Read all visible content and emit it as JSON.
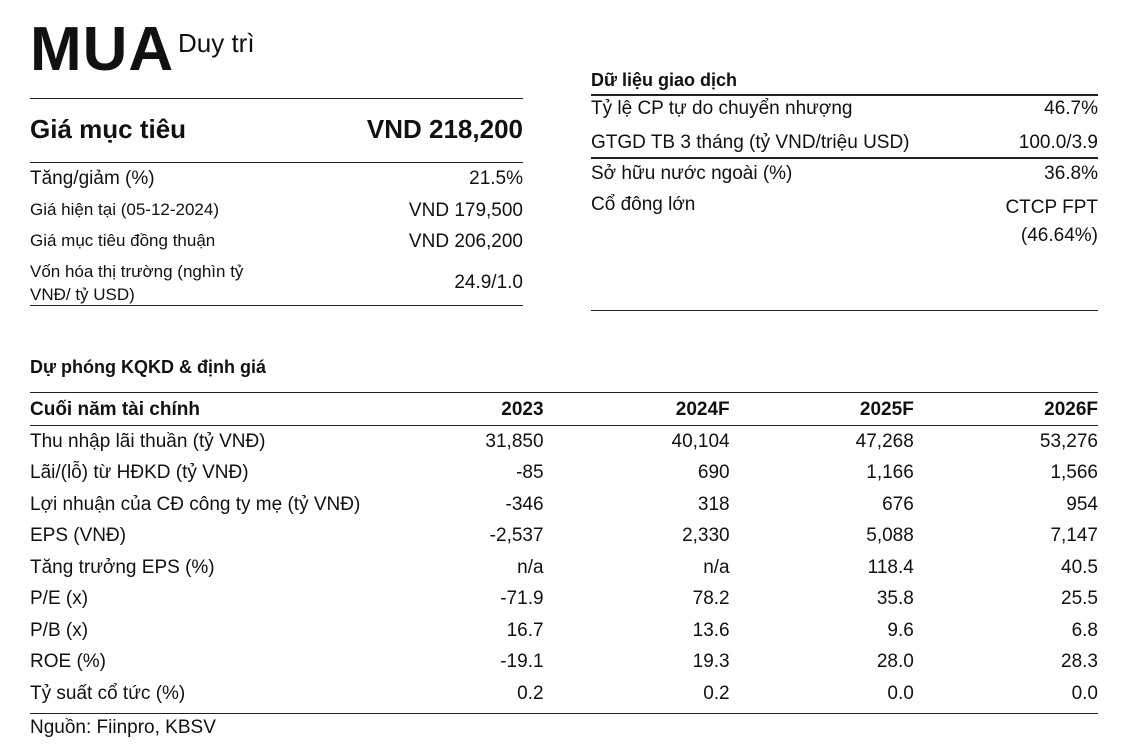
{
  "rating": "MUA",
  "rating_status": "Duy trì",
  "target": {
    "label": "Giá mục tiêu",
    "value": "VND 218,200"
  },
  "summary": [
    {
      "label": "Tăng/giảm (%)",
      "value": "21.5%"
    },
    {
      "label": "Giá hiện tại (05-12-2024)",
      "value": "VND 179,500"
    },
    {
      "label": "Giá mục tiêu đồng thuận",
      "value": "VND 206,200"
    },
    {
      "label": "Vốn hóa thị trường (nghìn tỷ VNĐ/ tỷ USD)",
      "value": "24.9/1.0"
    }
  ],
  "trading": {
    "title": "Dữ liệu giao dịch",
    "rows": [
      {
        "label": "Tỷ lệ CP tự do chuyển nhượng",
        "value": "46.7%"
      },
      {
        "label": "GTGD TB 3 tháng (tỷ VND/triệu USD)",
        "value": "100.0/3.9"
      },
      {
        "label": "Sở hữu nước ngoài (%)",
        "value": "36.8%"
      },
      {
        "label": "Cổ đông lớn",
        "value": "CTCP FPT",
        "value2": "(46.64%)"
      }
    ]
  },
  "forecast": {
    "title": "Dự phóng KQKD & định giá",
    "headers": [
      "Cuối năm tài chính",
      "2023",
      "2024F",
      "2025F",
      "2026F"
    ],
    "rows": [
      [
        "Thu nhập lãi thuần (tỷ VNĐ)",
        "31,850",
        "40,104",
        "47,268",
        "53,276"
      ],
      [
        "Lãi/(lỗ) từ HĐKD (tỷ VNĐ)",
        "-85",
        "690",
        "1,166",
        "1,566"
      ],
      [
        "Lợi nhuận của CĐ công ty mẹ (tỷ VNĐ)",
        "-346",
        "318",
        "676",
        "954"
      ],
      [
        "EPS (VNĐ)",
        "-2,537",
        "2,330",
        "5,088",
        "7,147"
      ],
      [
        "Tăng trưởng EPS (%)",
        "n/a",
        "n/a",
        "118.4",
        "40.5"
      ],
      [
        "P/E (x)",
        "-71.9",
        "78.2",
        "35.8",
        "25.5"
      ],
      [
        "P/B (x)",
        "16.7",
        "13.6",
        "9.6",
        "6.8"
      ],
      [
        "ROE (%)",
        "-19.1",
        "19.3",
        "28.0",
        "28.3"
      ],
      [
        "Tỷ suất cổ tức (%)",
        "0.2",
        "0.2",
        "0.0",
        "0.0"
      ]
    ]
  },
  "source": "Nguồn: Fiinpro, KBSV"
}
